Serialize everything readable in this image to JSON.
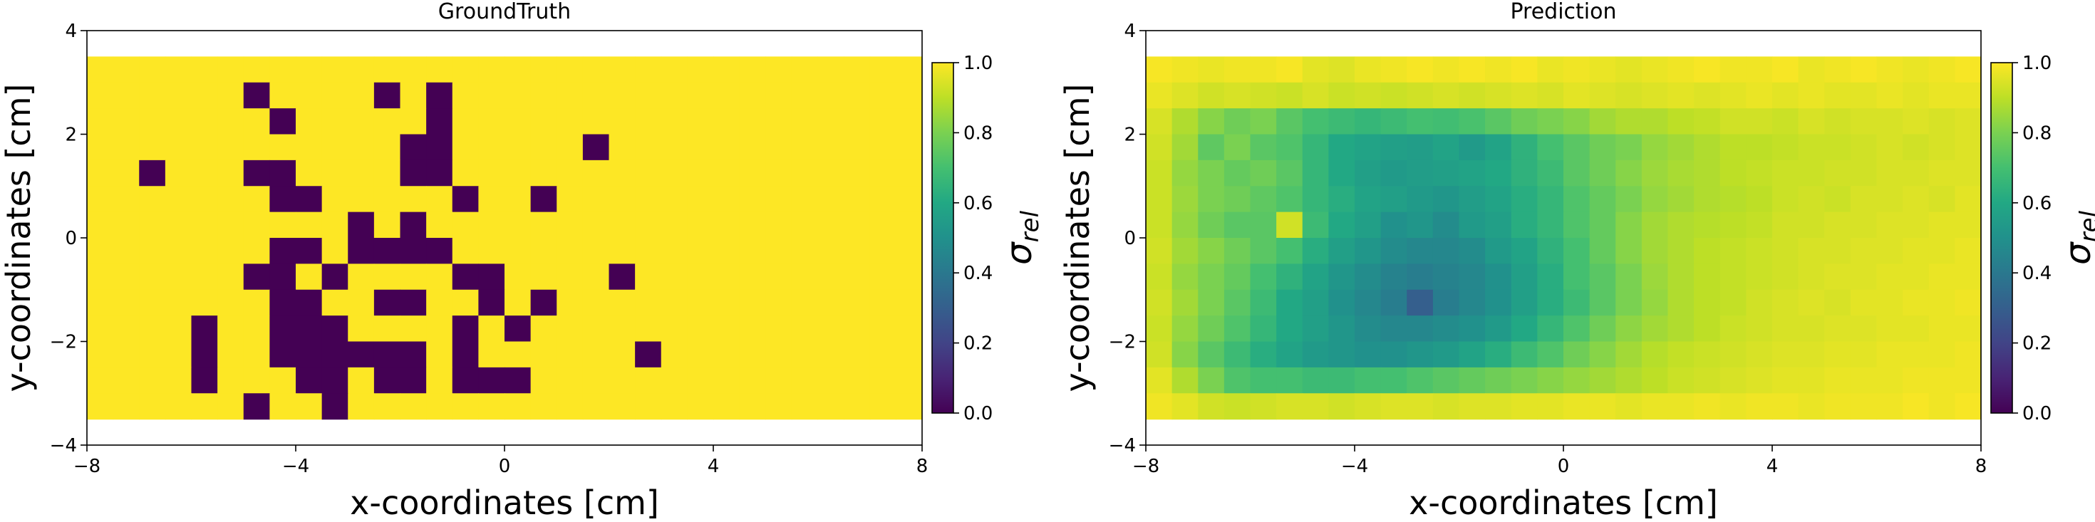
{
  "chart_data": [
    {
      "type": "heatmap",
      "title": "GroundTruth",
      "xlabel": "x-coordinates [cm]",
      "ylabel": "y-coordinates [cm]",
      "xlim": [
        -8,
        8
      ],
      "ylim": [
        -4,
        4
      ],
      "xticks": [
        -8,
        -4,
        0,
        4,
        8
      ],
      "yticks": [
        -4,
        -2,
        0,
        2,
        4
      ],
      "colorbar": {
        "label": "σ_rel",
        "label_main": "σ",
        "label_sub": "rel",
        "range": [
          0.0,
          1.0
        ],
        "ticks": [
          "0.0",
          "0.2",
          "0.4",
          "0.6",
          "0.8",
          "1.0"
        ]
      },
      "grid": {
        "x_extent": [
          -8,
          8
        ],
        "y_extent": [
          -3.5,
          3.5
        ],
        "nx": 32,
        "ny": 14,
        "cell_size_cm": 0.5,
        "default_value": 1.0
      },
      "anomaly_value": 0.0,
      "anomaly_cells": [
        [
          -5,
          3
        ],
        [
          -2.5,
          3
        ],
        [
          -1.5,
          3
        ],
        [
          -4.5,
          2.5
        ],
        [
          -1.5,
          2.5
        ],
        [
          -2,
          2
        ],
        [
          -1.5,
          2
        ],
        [
          1.5,
          2
        ],
        [
          -7,
          1.5
        ],
        [
          -5,
          1.5
        ],
        [
          -4.5,
          1.5
        ],
        [
          -2,
          1.5
        ],
        [
          -1.5,
          1.5
        ],
        [
          -4.5,
          1
        ],
        [
          -4,
          1
        ],
        [
          -1,
          1
        ],
        [
          0.5,
          1
        ],
        [
          -3,
          0.5
        ],
        [
          -2,
          0.5
        ],
        [
          -4.5,
          0
        ],
        [
          -4,
          0
        ],
        [
          -3,
          0
        ],
        [
          -2.5,
          0
        ],
        [
          -2,
          0
        ],
        [
          -1.5,
          0
        ],
        [
          -5,
          -0.5
        ],
        [
          -4.5,
          -0.5
        ],
        [
          -3.5,
          -0.5
        ],
        [
          -1,
          -0.5
        ],
        [
          -0.5,
          -0.5
        ],
        [
          2,
          -0.5
        ],
        [
          -4.5,
          -1
        ],
        [
          -4,
          -1
        ],
        [
          -2.5,
          -1
        ],
        [
          -2,
          -1
        ],
        [
          -0.5,
          -1
        ],
        [
          0.5,
          -1
        ],
        [
          -6,
          -1.5
        ],
        [
          -4.5,
          -1.5
        ],
        [
          -4,
          -1.5
        ],
        [
          -3.5,
          -1.5
        ],
        [
          -1,
          -1.5
        ],
        [
          0,
          -1.5
        ],
        [
          -6,
          -2
        ],
        [
          -4.5,
          -2
        ],
        [
          -4,
          -2
        ],
        [
          -3.5,
          -2
        ],
        [
          -3,
          -2
        ],
        [
          -2.5,
          -2
        ],
        [
          -2,
          -2
        ],
        [
          -1,
          -2
        ],
        [
          2.5,
          -2
        ],
        [
          -6,
          -2.5
        ],
        [
          -4,
          -2.5
        ],
        [
          -3.5,
          -2.5
        ],
        [
          -2.5,
          -2.5
        ],
        [
          -2,
          -2.5
        ],
        [
          -1,
          -2.5
        ],
        [
          -0.5,
          -2.5
        ],
        [
          0,
          -2.5
        ],
        [
          -5,
          -3
        ],
        [
          -3.5,
          -3
        ]
      ]
    },
    {
      "type": "heatmap",
      "title": "Prediction",
      "xlabel": "x-coordinates [cm]",
      "ylabel": "y-coordinates [cm]",
      "xlim": [
        -8,
        8
      ],
      "ylim": [
        -4,
        4
      ],
      "xticks": [
        -8,
        -4,
        0,
        4,
        8
      ],
      "yticks": [
        -4,
        -2,
        0,
        2,
        4
      ],
      "colorbar": {
        "label": "σ_rel",
        "label_main": "σ",
        "label_sub": "rel",
        "range": [
          0.0,
          1.0
        ],
        "ticks": [
          "0.0",
          "0.2",
          "0.4",
          "0.6",
          "0.8",
          "1.0"
        ]
      },
      "grid": {
        "x_extent": [
          -8,
          8
        ],
        "y_extent": [
          -3.5,
          3.5
        ],
        "nx": 32,
        "ny": 14,
        "cell_size_cm": 0.5
      },
      "values": [
        [
          0.99,
          0.98,
          0.97,
          0.98,
          0.98,
          0.99,
          0.96,
          0.95,
          0.97,
          0.98,
          0.99,
          0.98,
          0.99,
          0.98,
          0.99,
          0.97,
          0.98,
          0.97,
          0.96,
          0.97,
          0.98,
          0.99,
          0.98,
          0.98,
          0.99,
          0.97,
          0.98,
          0.99,
          0.98,
          0.97,
          0.98,
          0.99
        ],
        [
          0.97,
          0.95,
          0.93,
          0.94,
          0.93,
          0.92,
          0.94,
          0.92,
          0.93,
          0.92,
          0.93,
          0.94,
          0.93,
          0.94,
          0.95,
          0.94,
          0.96,
          0.95,
          0.94,
          0.95,
          0.96,
          0.95,
          0.96,
          0.97,
          0.96,
          0.97,
          0.96,
          0.96,
          0.97,
          0.96,
          0.97,
          0.97
        ],
        [
          0.94,
          0.88,
          0.82,
          0.78,
          0.8,
          0.74,
          0.7,
          0.68,
          0.66,
          0.68,
          0.7,
          0.69,
          0.71,
          0.74,
          0.78,
          0.8,
          0.82,
          0.86,
          0.88,
          0.88,
          0.9,
          0.91,
          0.93,
          0.93,
          0.92,
          0.94,
          0.93,
          0.94,
          0.94,
          0.95,
          0.94,
          0.95
        ],
        [
          0.93,
          0.86,
          0.75,
          0.8,
          0.74,
          0.72,
          0.66,
          0.6,
          0.58,
          0.56,
          0.55,
          0.58,
          0.54,
          0.58,
          0.64,
          0.7,
          0.74,
          0.78,
          0.8,
          0.84,
          0.86,
          0.88,
          0.9,
          0.9,
          0.91,
          0.92,
          0.92,
          0.93,
          0.94,
          0.93,
          0.94,
          0.95
        ],
        [
          0.92,
          0.84,
          0.8,
          0.76,
          0.78,
          0.74,
          0.66,
          0.6,
          0.56,
          0.54,
          0.55,
          0.56,
          0.58,
          0.6,
          0.64,
          0.68,
          0.74,
          0.78,
          0.82,
          0.85,
          0.87,
          0.88,
          0.9,
          0.91,
          0.92,
          0.92,
          0.93,
          0.93,
          0.94,
          0.94,
          0.95,
          0.95
        ],
        [
          0.92,
          0.85,
          0.8,
          0.78,
          0.75,
          0.72,
          0.66,
          0.62,
          0.58,
          0.56,
          0.54,
          0.52,
          0.55,
          0.58,
          0.62,
          0.66,
          0.72,
          0.76,
          0.8,
          0.84,
          0.86,
          0.88,
          0.89,
          0.9,
          0.92,
          0.93,
          0.92,
          0.94,
          0.94,
          0.95,
          0.94,
          0.96
        ],
        [
          0.92,
          0.84,
          0.78,
          0.74,
          0.74,
          0.93,
          0.68,
          0.6,
          0.56,
          0.5,
          0.52,
          0.48,
          0.54,
          0.56,
          0.62,
          0.66,
          0.72,
          0.76,
          0.82,
          0.86,
          0.88,
          0.89,
          0.9,
          0.91,
          0.93,
          0.93,
          0.94,
          0.94,
          0.95,
          0.95,
          0.96,
          0.96
        ],
        [
          0.93,
          0.86,
          0.82,
          0.78,
          0.74,
          0.7,
          0.62,
          0.56,
          0.52,
          0.48,
          0.46,
          0.46,
          0.48,
          0.54,
          0.58,
          0.64,
          0.7,
          0.76,
          0.82,
          0.86,
          0.88,
          0.9,
          0.91,
          0.92,
          0.93,
          0.94,
          0.94,
          0.95,
          0.95,
          0.96,
          0.96,
          0.97
        ],
        [
          0.92,
          0.84,
          0.8,
          0.76,
          0.7,
          0.64,
          0.58,
          0.52,
          0.48,
          0.44,
          0.42,
          0.44,
          0.46,
          0.5,
          0.56,
          0.62,
          0.7,
          0.74,
          0.8,
          0.85,
          0.88,
          0.9,
          0.91,
          0.92,
          0.93,
          0.94,
          0.95,
          0.95,
          0.96,
          0.96,
          0.97,
          0.97
        ],
        [
          0.93,
          0.86,
          0.8,
          0.74,
          0.68,
          0.6,
          0.56,
          0.5,
          0.46,
          0.42,
          0.3,
          0.42,
          0.46,
          0.5,
          0.56,
          0.62,
          0.68,
          0.74,
          0.8,
          0.84,
          0.88,
          0.9,
          0.91,
          0.93,
          0.94,
          0.95,
          0.94,
          0.96,
          0.96,
          0.97,
          0.97,
          0.98
        ],
        [
          0.92,
          0.84,
          0.78,
          0.72,
          0.66,
          0.6,
          0.56,
          0.52,
          0.48,
          0.46,
          0.46,
          0.48,
          0.5,
          0.54,
          0.6,
          0.66,
          0.72,
          0.78,
          0.83,
          0.86,
          0.88,
          0.9,
          0.92,
          0.93,
          0.94,
          0.94,
          0.95,
          0.95,
          0.96,
          0.96,
          0.97,
          0.97
        ],
        [
          0.93,
          0.82,
          0.74,
          0.68,
          0.62,
          0.58,
          0.54,
          0.52,
          0.5,
          0.5,
          0.52,
          0.54,
          0.58,
          0.62,
          0.68,
          0.72,
          0.78,
          0.82,
          0.86,
          0.89,
          0.91,
          0.92,
          0.93,
          0.94,
          0.95,
          0.95,
          0.96,
          0.96,
          0.97,
          0.97,
          0.97,
          0.98
        ],
        [
          0.96,
          0.88,
          0.8,
          0.72,
          0.7,
          0.7,
          0.68,
          0.68,
          0.7,
          0.7,
          0.72,
          0.74,
          0.76,
          0.78,
          0.8,
          0.82,
          0.84,
          0.86,
          0.88,
          0.9,
          0.92,
          0.93,
          0.94,
          0.95,
          0.96,
          0.96,
          0.97,
          0.97,
          0.97,
          0.98,
          0.98,
          0.98
        ],
        [
          0.98,
          0.96,
          0.93,
          0.92,
          0.93,
          0.94,
          0.94,
          0.93,
          0.94,
          0.95,
          0.95,
          0.94,
          0.95,
          0.95,
          0.96,
          0.96,
          0.97,
          0.97,
          0.96,
          0.97,
          0.97,
          0.98,
          0.97,
          0.98,
          0.98,
          0.97,
          0.98,
          0.98,
          0.98,
          0.99,
          0.98,
          0.99
        ]
      ]
    }
  ]
}
